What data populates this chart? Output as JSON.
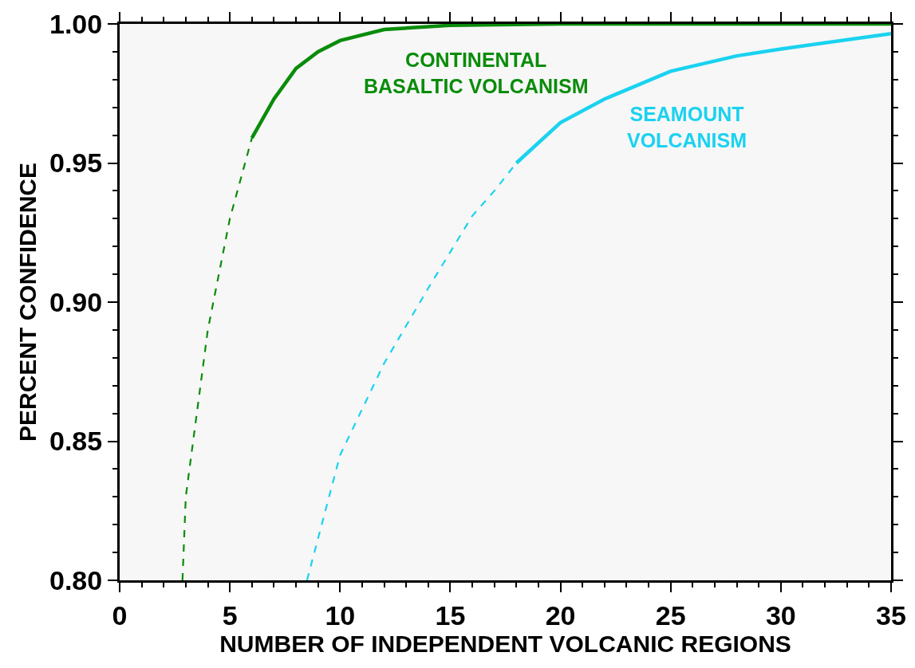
{
  "chart_data": {
    "type": "line",
    "xlabel": "NUMBER OF INDEPENDENT VOLCANIC REGIONS",
    "ylabel": "PERCENT CONFIDENCE",
    "xlim": [
      0,
      35
    ],
    "ylim": [
      0.8,
      1.0
    ],
    "xticks": [
      0,
      {
        "value": 1,
        "label": null
      },
      {
        "value": 2,
        "label": null
      },
      {
        "value": 3,
        "label": null
      },
      {
        "value": 4,
        "label": null
      },
      5,
      {
        "value": 6,
        "label": null
      },
      {
        "value": 7,
        "label": null
      },
      {
        "value": 8,
        "label": null
      },
      {
        "value": 9,
        "label": null
      },
      10,
      {
        "value": 11,
        "label": null
      },
      {
        "value": 12,
        "label": null
      },
      {
        "value": 13,
        "label": null
      },
      {
        "value": 14,
        "label": null
      },
      15,
      {
        "value": 16,
        "label": null
      },
      {
        "value": 17,
        "label": null
      },
      {
        "value": 18,
        "label": null
      },
      {
        "value": 19,
        "label": null
      },
      20,
      {
        "value": 21,
        "label": null
      },
      {
        "value": 22,
        "label": null
      },
      {
        "value": 23,
        "label": null
      },
      {
        "value": 24,
        "label": null
      },
      25,
      {
        "value": 26,
        "label": null
      },
      {
        "value": 27,
        "label": null
      },
      {
        "value": 28,
        "label": null
      },
      {
        "value": 29,
        "label": null
      },
      30,
      {
        "value": 31,
        "label": null
      },
      {
        "value": 32,
        "label": null
      },
      {
        "value": 33,
        "label": null
      },
      {
        "value": 34,
        "label": null
      },
      35
    ],
    "yticks": [
      {
        "value": 0.8,
        "label": "0.80"
      },
      {
        "value": 0.81,
        "label": null
      },
      {
        "value": 0.82,
        "label": null
      },
      {
        "value": 0.83,
        "label": null
      },
      {
        "value": 0.84,
        "label": null
      },
      {
        "value": 0.85,
        "label": "0.85"
      },
      {
        "value": 0.86,
        "label": null
      },
      {
        "value": 0.87,
        "label": null
      },
      {
        "value": 0.88,
        "label": null
      },
      {
        "value": 0.89,
        "label": null
      },
      {
        "value": 0.9,
        "label": "0.90"
      },
      {
        "value": 0.91,
        "label": null
      },
      {
        "value": 0.92,
        "label": null
      },
      {
        "value": 0.93,
        "label": null
      },
      {
        "value": 0.94,
        "label": null
      },
      {
        "value": 0.95,
        "label": "0.95"
      },
      {
        "value": 0.96,
        "label": null
      },
      {
        "value": 0.97,
        "label": null
      },
      {
        "value": 0.98,
        "label": null
      },
      {
        "value": 0.99,
        "label": null
      },
      {
        "value": 1.0,
        "label": "1.00"
      }
    ],
    "grid": false,
    "legend": false,
    "marker": "none",
    "series": [
      {
        "color": "#0a8c0a",
        "line_style": "dashed",
        "x": [
          2.85,
          3,
          4,
          5,
          6
        ],
        "values": [
          0.8,
          0.83,
          0.89,
          0.93,
          0.959
        ]
      },
      {
        "name": "CONTINENTAL\nBASALTIC VOLCANISM",
        "color": "#0a8c0a",
        "line_style": "solid",
        "x": [
          6,
          7,
          8,
          9,
          10,
          12,
          15,
          20,
          35
        ],
        "values": [
          0.959,
          0.973,
          0.984,
          0.99,
          0.994,
          0.998,
          0.9995,
          1.0,
          1.0
        ]
      },
      {
        "color": "#1ad2f0",
        "line_style": "dashed",
        "x": [
          8.5,
          10,
          12,
          14,
          16,
          17,
          18
        ],
        "values": [
          0.8,
          0.845,
          0.878,
          0.905,
          0.931,
          0.94,
          0.95
        ]
      },
      {
        "name": "SEAMOUNT\nVOLCANISM",
        "color": "#1ad2f0",
        "line_style": "solid",
        "x": [
          18,
          20,
          22,
          25,
          28,
          30,
          35
        ],
        "values": [
          0.95,
          0.9645,
          0.973,
          0.983,
          0.9885,
          0.991,
          0.9965
        ]
      }
    ]
  }
}
